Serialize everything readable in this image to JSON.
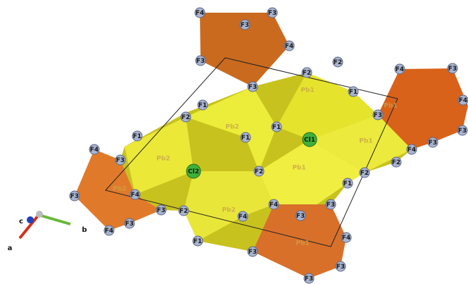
{
  "atoms": [
    "F4",
    "F3",
    "F3",
    "F4",
    "F3",
    "F2",
    "F2",
    "F4",
    "F3",
    "F3",
    "F1",
    "F1",
    "F2",
    "F3",
    "F4",
    "F1",
    "Cl1",
    "F1",
    "F1",
    "F4",
    "F3",
    "F4",
    "F3",
    "F3",
    "Cl2",
    "F2",
    "F2",
    "F2",
    "F1",
    "F3",
    "F4",
    "F3",
    "F4",
    "F2",
    "F3",
    "F3",
    "F4",
    "F3",
    "F4",
    "F1",
    "F3",
    "F4",
    "F3",
    "F3"
  ],
  "pb_labels": [
    "Pb1",
    "Pb2",
    "Pb1",
    "Pb2",
    "Pb2",
    "Pb1",
    "Pb2",
    "Pb1",
    "Pb1"
  ],
  "axes": {
    "a": "a",
    "b": "b",
    "c": "c"
  }
}
